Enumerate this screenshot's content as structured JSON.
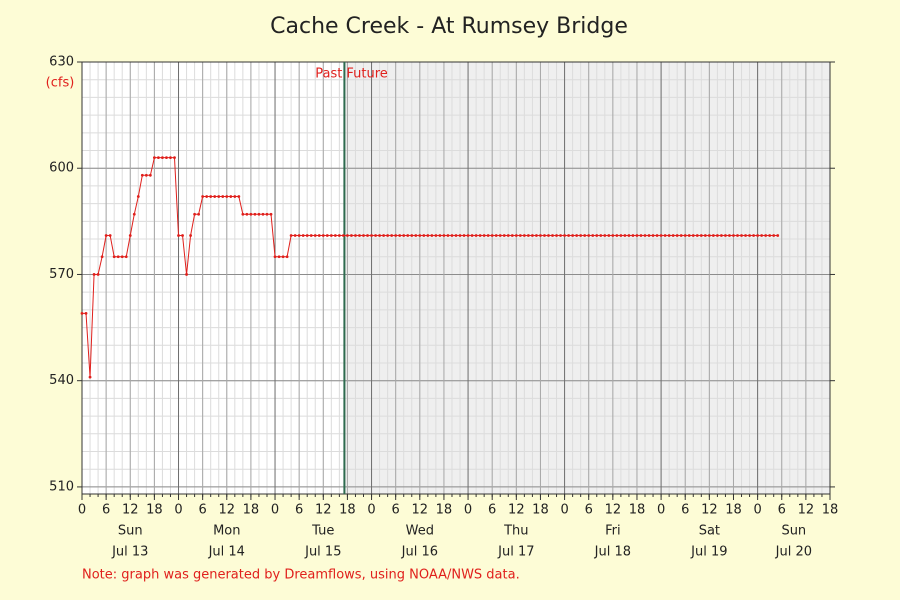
{
  "chart_data": {
    "type": "line",
    "title": "Cache Creek - At Rumsey Bridge",
    "y_unit": "(cfs)",
    "note": "Note: graph was generated by Dreamflows, using NOAA/NWS data.",
    "color": "#e0201c",
    "grid": true,
    "minor_grid": {
      "x": 2,
      "y": 5
    },
    "future_shade": "#efefef",
    "now_marker": {
      "x": 65.25,
      "color": "#2e6b4f",
      "labels": [
        "Past",
        "Future"
      ]
    },
    "xlim": [
      0,
      186
    ],
    "ylim": [
      508,
      630
    ],
    "yticks": [
      510,
      540,
      570,
      600,
      630
    ],
    "xticks": [
      0,
      6,
      12,
      18,
      {
        "value": 24,
        "label": "0"
      },
      {
        "value": 30,
        "label": "6"
      },
      {
        "value": 36,
        "label": "12"
      },
      {
        "value": 42,
        "label": "18"
      },
      {
        "value": 48,
        "label": "0"
      },
      {
        "value": 54,
        "label": "6"
      },
      {
        "value": 60,
        "label": "12"
      },
      {
        "value": 66,
        "label": "18"
      },
      {
        "value": 72,
        "label": "0"
      },
      {
        "value": 78,
        "label": "6"
      },
      {
        "value": 84,
        "label": "12"
      },
      {
        "value": 90,
        "label": "18"
      },
      {
        "value": 96,
        "label": "0"
      },
      {
        "value": 102,
        "label": "6"
      },
      {
        "value": 108,
        "label": "12"
      },
      {
        "value": 114,
        "label": "18"
      },
      {
        "value": 120,
        "label": "0"
      },
      {
        "value": 126,
        "label": "6"
      },
      {
        "value": 132,
        "label": "12"
      },
      {
        "value": 138,
        "label": "18"
      },
      {
        "value": 144,
        "label": "0"
      },
      {
        "value": 150,
        "label": "6"
      },
      {
        "value": 156,
        "label": "12"
      },
      {
        "value": 162,
        "label": "18"
      },
      {
        "value": 168,
        "label": "0"
      },
      {
        "value": 174,
        "label": "6"
      },
      {
        "value": 180,
        "label": "12"
      },
      {
        "value": 186,
        "label": "18"
      }
    ],
    "days": [
      {
        "name": "Sun",
        "date": "Jul 13"
      },
      {
        "name": "Mon",
        "date": "Jul 14"
      },
      {
        "name": "Tue",
        "date": "Jul 15"
      },
      {
        "name": "Wed",
        "date": "Jul 16"
      },
      {
        "name": "Thu",
        "date": "Jul 17"
      },
      {
        "name": "Fri",
        "date": "Jul 18"
      },
      {
        "name": "Sat",
        "date": "Jul 19"
      },
      {
        "name": "Sun",
        "date": "Jul 20"
      }
    ],
    "x": [
      0,
      1,
      2,
      3,
      4,
      5,
      6,
      7,
      8,
      9,
      10,
      11,
      12,
      13,
      14,
      15,
      16,
      17,
      18,
      19,
      20,
      21,
      22,
      23,
      24,
      25,
      26,
      27,
      28,
      29,
      30,
      31,
      32,
      33,
      34,
      35,
      36,
      37,
      38,
      39,
      40,
      41,
      42,
      43,
      44,
      45,
      46,
      47,
      48,
      49,
      50,
      51,
      52,
      53,
      54,
      55,
      56,
      57,
      58,
      59,
      60,
      61,
      62,
      63,
      64,
      65,
      66,
      67,
      68,
      69,
      70,
      71,
      72,
      73,
      74,
      75,
      76,
      77,
      78,
      79,
      80,
      81,
      82,
      83,
      84,
      85,
      86,
      87,
      88,
      89,
      90,
      91,
      92,
      93,
      94,
      95,
      96,
      97,
      98,
      99,
      100,
      101,
      102,
      103,
      104,
      105,
      106,
      107,
      108,
      109,
      110,
      111,
      112,
      113,
      114,
      115,
      116,
      117,
      118,
      119,
      120,
      121,
      122,
      123,
      124,
      125,
      126,
      127,
      128,
      129,
      130,
      131,
      132,
      133,
      134,
      135,
      136,
      137,
      138,
      139,
      140,
      141,
      142,
      143,
      144,
      145,
      146,
      147,
      148,
      149,
      150,
      151,
      152,
      153,
      154,
      155,
      156,
      157,
      158,
      159,
      160,
      161,
      162,
      163,
      164,
      165,
      166,
      167,
      168,
      169,
      170,
      171,
      172,
      173
    ],
    "values": [
      559,
      559,
      541,
      570,
      570,
      575,
      581,
      581,
      575,
      575,
      575,
      575,
      581,
      587,
      592,
      598,
      598,
      598,
      603,
      603,
      603,
      603,
      603,
      603,
      581,
      581,
      570,
      581,
      587,
      587,
      592,
      592,
      592,
      592,
      592,
      592,
      592,
      592,
      592,
      592,
      587,
      587,
      587,
      587,
      587,
      587,
      587,
      587,
      575,
      575,
      575,
      575,
      581,
      581,
      581,
      581,
      581,
      581,
      581,
      581,
      581,
      581,
      581,
      581,
      581,
      581,
      581,
      581,
      581,
      581,
      581,
      581,
      581,
      581,
      581,
      581,
      581,
      581,
      581,
      581,
      581,
      581,
      581,
      581,
      581,
      581,
      581,
      581,
      581,
      581,
      581,
      581,
      581,
      581,
      581,
      581,
      581,
      581,
      581,
      581,
      581,
      581,
      581,
      581,
      581,
      581,
      581,
      581,
      581,
      581,
      581,
      581,
      581,
      581,
      581,
      581,
      581,
      581,
      581,
      581,
      581,
      581,
      581,
      581,
      581,
      581,
      581,
      581,
      581,
      581,
      581,
      581,
      581,
      581,
      581,
      581,
      581,
      581,
      581,
      581,
      581,
      581,
      581,
      581,
      581,
      581,
      581,
      581,
      581,
      581,
      581,
      581,
      581,
      581,
      581,
      581,
      581,
      581,
      581,
      581,
      581,
      581,
      581,
      581,
      581,
      581,
      581,
      581,
      581,
      581,
      581,
      581,
      581,
      581
    ]
  }
}
